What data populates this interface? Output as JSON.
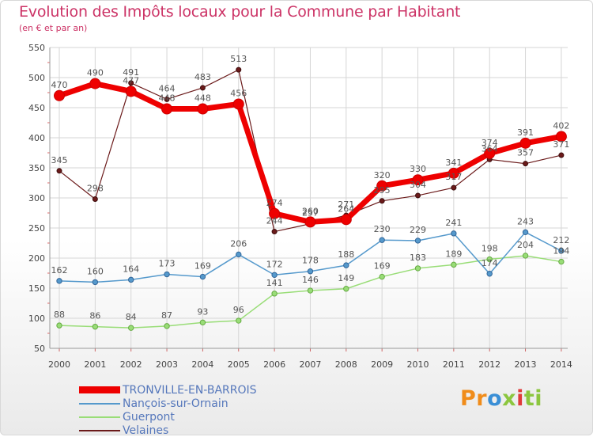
{
  "title": "Evolution des Impôts locaux pour la Commune par Habitant",
  "subtitle": "(en € et par an)",
  "logo": {
    "p1": "Pr",
    "p2": "o",
    "p3": "x",
    "p4": "i",
    "p5": "ti"
  },
  "chart_data": {
    "type": "line",
    "title": "Evolution des Impôts locaux pour la Commune par Habitant",
    "ylabel": "(en € et par an)",
    "x": [
      2000,
      2001,
      2002,
      2003,
      2004,
      2005,
      2006,
      2007,
      2008,
      2009,
      2010,
      2011,
      2012,
      2013,
      2014
    ],
    "ylim": [
      50,
      550
    ],
    "yticks": [
      50,
      100,
      150,
      200,
      250,
      300,
      350,
      400,
      450,
      500,
      550
    ],
    "grid": true,
    "legend_position": "bottom-left",
    "series": [
      {
        "name": "Velaines",
        "color": "#6b1a1a",
        "values": [
          345,
          298,
          491,
          464,
          483,
          513,
          244,
          257,
          271,
          295,
          304,
          317,
          364,
          357,
          371
        ]
      },
      {
        "name": "Guerpont",
        "color": "#99dd77",
        "values": [
          88,
          86,
          84,
          87,
          93,
          96,
          141,
          146,
          149,
          169,
          183,
          189,
          198,
          204,
          194
        ]
      },
      {
        "name": "Nançois-sur-Ornain",
        "color": "#5599cc",
        "values": [
          162,
          160,
          164,
          173,
          169,
          206,
          172,
          178,
          188,
          230,
          229,
          241,
          174,
          243,
          212
        ]
      },
      {
        "name": "TRONVILLE-EN-BARROIS",
        "color": "#ee0000",
        "values": [
          470,
          490,
          477,
          448,
          448,
          456,
          274,
          260,
          264,
          320,
          330,
          341,
          374,
          391,
          402
        ]
      }
    ]
  }
}
